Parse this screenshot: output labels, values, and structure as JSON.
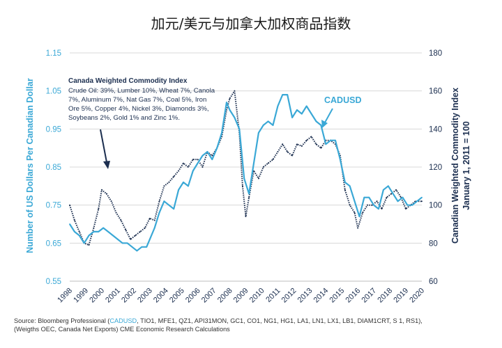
{
  "chart_data": {
    "type": "line",
    "title": "加元/美元与加拿大加权商品指数",
    "left_axis": {
      "label": "Number of US Dollars Per Canadian Dollar",
      "ticks": [
        "1.15",
        "1.05",
        "0.95",
        "0.85",
        "0.75",
        "0.65",
        "0.55"
      ],
      "ylim": [
        0.55,
        1.15
      ],
      "color": "#3aa8d6"
    },
    "right_axis": {
      "label_line1": "Canadian Weighted Commodity Index",
      "label_line2": "January 1, 2011 = 100",
      "ticks": [
        "180",
        "160",
        "140",
        "120",
        "100",
        "80",
        "60"
      ],
      "ylim": [
        60,
        180
      ],
      "color": "#1b2e4f"
    },
    "x_ticks": [
      "1998",
      "1999",
      "2000",
      "2001",
      "2002",
      "2003",
      "2004",
      "2005",
      "2006",
      "2007",
      "2008",
      "2009",
      "2010",
      "2011",
      "2012",
      "2013",
      "2014",
      "2015",
      "2016",
      "2017",
      "2018",
      "2019",
      "2020"
    ],
    "xlim": [
      1998,
      2020
    ],
    "grid": "horizontal",
    "series": [
      {
        "name": "CADUSD",
        "axis": "left",
        "color": "#3aa8d6",
        "style": "solid",
        "x": [
          1998.0,
          1998.3,
          1998.6,
          1998.9,
          1999.2,
          1999.5,
          1999.8,
          2000.1,
          2000.4,
          2000.7,
          2001.0,
          2001.3,
          2001.6,
          2001.9,
          2002.2,
          2002.5,
          2002.8,
          2003.0,
          2003.3,
          2003.6,
          2003.9,
          2004.2,
          2004.5,
          2004.8,
          2005.1,
          2005.4,
          2005.7,
          2006.0,
          2006.3,
          2006.6,
          2006.9,
          2007.2,
          2007.5,
          2007.8,
          2008.0,
          2008.3,
          2008.6,
          2008.9,
          2009.2,
          2009.5,
          2009.8,
          2010.1,
          2010.4,
          2010.7,
          2011.0,
          2011.3,
          2011.6,
          2011.9,
          2012.2,
          2012.5,
          2012.8,
          2013.1,
          2013.4,
          2013.7,
          2014.0,
          2014.3,
          2014.6,
          2014.9,
          2015.2,
          2015.5,
          2015.8,
          2016.1,
          2016.4,
          2016.7,
          2017.0,
          2017.3,
          2017.6,
          2017.9,
          2018.2,
          2018.5,
          2018.8,
          2019.1,
          2019.4,
          2019.7,
          2020.0
        ],
        "values": [
          0.7,
          0.68,
          0.67,
          0.65,
          0.67,
          0.68,
          0.68,
          0.69,
          0.68,
          0.67,
          0.66,
          0.65,
          0.65,
          0.64,
          0.63,
          0.64,
          0.64,
          0.66,
          0.69,
          0.73,
          0.76,
          0.75,
          0.74,
          0.79,
          0.81,
          0.8,
          0.84,
          0.86,
          0.88,
          0.89,
          0.87,
          0.9,
          0.94,
          1.02,
          1.0,
          0.98,
          0.95,
          0.82,
          0.78,
          0.86,
          0.94,
          0.96,
          0.97,
          0.96,
          1.01,
          1.04,
          1.04,
          0.98,
          1.0,
          0.99,
          1.01,
          0.99,
          0.97,
          0.96,
          0.91,
          0.92,
          0.92,
          0.87,
          0.81,
          0.8,
          0.76,
          0.72,
          0.77,
          0.77,
          0.75,
          0.74,
          0.79,
          0.8,
          0.78,
          0.76,
          0.77,
          0.75,
          0.75,
          0.76,
          0.77
        ]
      },
      {
        "name": "Canadian Weighted Commodity Index",
        "axis": "right",
        "color": "#1b2e4f",
        "style": "dotted",
        "x": [
          1998.0,
          1998.3,
          1998.6,
          1998.9,
          1999.2,
          1999.5,
          1999.8,
          2000.0,
          2000.3,
          2000.6,
          2000.9,
          2001.2,
          2001.5,
          2001.8,
          2002.1,
          2002.4,
          2002.7,
          2003.0,
          2003.3,
          2003.6,
          2003.9,
          2004.2,
          2004.5,
          2004.8,
          2005.1,
          2005.4,
          2005.7,
          2006.0,
          2006.3,
          2006.6,
          2006.9,
          2007.2,
          2007.5,
          2007.8,
          2008.0,
          2008.3,
          2008.6,
          2008.8,
          2009.0,
          2009.2,
          2009.5,
          2009.8,
          2010.1,
          2010.4,
          2010.7,
          2011.0,
          2011.3,
          2011.6,
          2011.9,
          2012.2,
          2012.5,
          2012.8,
          2013.1,
          2013.4,
          2013.7,
          2014.0,
          2014.3,
          2014.6,
          2014.9,
          2015.2,
          2015.5,
          2015.8,
          2016.0,
          2016.3,
          2016.6,
          2016.9,
          2017.2,
          2017.5,
          2017.8,
          2018.1,
          2018.4,
          2018.7,
          2019.0,
          2019.3,
          2019.6,
          2020.0
        ],
        "values": [
          100,
          92,
          86,
          80,
          79,
          88,
          98,
          108,
          106,
          102,
          96,
          92,
          87,
          82,
          84,
          86,
          88,
          93,
          92,
          102,
          110,
          112,
          115,
          118,
          122,
          120,
          124,
          124,
          120,
          128,
          126,
          130,
          136,
          150,
          156,
          160,
          138,
          110,
          94,
          104,
          118,
          114,
          120,
          122,
          124,
          128,
          132,
          128,
          126,
          132,
          131,
          134,
          136,
          132,
          130,
          134,
          134,
          132,
          126,
          108,
          100,
          96,
          88,
          96,
          100,
          100,
          102,
          98,
          104,
          106,
          108,
          104,
          98,
          100,
          102,
          102
        ]
      }
    ],
    "annotations": [
      {
        "title": "Canada Weighted Commodity Index",
        "lines": [
          "Crude Oil: 39%, Lumber 10%, Wheat 7%, Canola",
          "7%, Aluminum 7%, Nat Gas 7%, Coal 5%, Iron",
          "Ore 5%, Copper 4%, Nickel 3%, Diamonds 3%,",
          "Soybeans 2%, Gold 1% and Zinc 1%."
        ],
        "target_x": 2000.1,
        "target_y": 118
      },
      {
        "text": "CADUSD",
        "target_x": 2013.6,
        "target_y": 0.94
      }
    ]
  },
  "source": {
    "prefix": "Source: Bloomberg Professional (",
    "highlight": "CADUSD",
    "rest": ", TIO1, MFE1, QZ1, API31MON, GC1, CO1, NG1, HG1, LA1, LN1, LX1, LB1, DIAM1CRT, S 1, RS1),",
    "line2": "(Weigths OEC, Canada Net Exports) CME Economic Research Calculations"
  }
}
